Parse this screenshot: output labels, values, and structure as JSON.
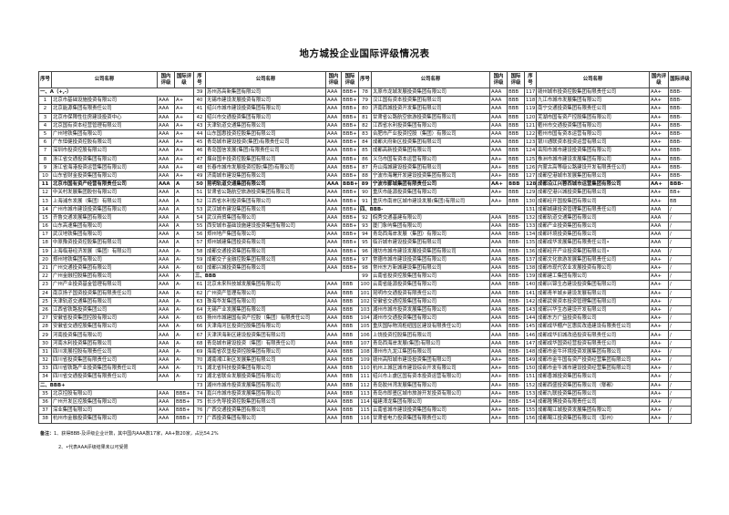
{
  "title": "地方城投企业国际评级情况表",
  "headers": {
    "seq": "序号",
    "name": "公司名称",
    "domestic": "国内评级",
    "intl": "国际评级"
  },
  "groups": [
    [
      {
        "section": "一、A（+,-）"
      },
      [
        "1",
        "北京市基础设施投资有限公司",
        "AAA",
        "A+"
      ],
      [
        "2",
        "北京能源集团有限责任公司",
        "AAA",
        "A+"
      ],
      [
        "3",
        "北京市保障性住房建设投资中心",
        "AAA",
        "A+"
      ],
      [
        "4",
        "北京国有资本经营管理有限公司",
        "AAA",
        "A+"
      ],
      [
        "5",
        "广州地铁集团有限公司",
        "AAA",
        "A+"
      ],
      [
        "6",
        "广东恒健投资控股有限公司",
        "AAA",
        "A+"
      ],
      [
        "7",
        "深圳市投资控股有限公司",
        "AAA",
        "A+"
      ],
      [
        "8",
        "浙江省交通投资集团有限公司",
        "AAA",
        "A+"
      ],
      [
        "9",
        "浙江省海港投资运营集团有限公司",
        "AAA",
        "A+"
      ],
      [
        "10",
        "山东省财金投资集团有限公司",
        "AAA",
        "A+"
      ],
      [
        "11",
        "北京市国有资产经营有限责任公司",
        "AAA",
        "A"
      ],
      [
        "12",
        "中关村发展集团股份有限公司",
        "AAA",
        "A"
      ],
      [
        "13",
        "上海浦东发展（集团）有限公司",
        "AAA",
        "A"
      ],
      [
        "14",
        "广州市城市建设投资集团有限公司",
        "AAA",
        "A"
      ],
      [
        "15",
        "齐鲁交通发展集团有限公司",
        "AAA",
        "A"
      ],
      [
        "16",
        "山东高速集团有限公司",
        "AAA",
        "A"
      ],
      [
        "17",
        "武汉地铁集团有限公司",
        "AAA",
        "A"
      ],
      [
        "18",
        "中原豫资投资控股集团有限公司",
        "AAA",
        "A"
      ],
      [
        "19",
        "上海临港经济发展（集团）有限公司",
        "AAA",
        "A-"
      ],
      [
        "20",
        "郑州地铁集团有限公司",
        "AAA",
        "A-"
      ],
      [
        "21",
        "广州交通投资集团有限公司",
        "AAA",
        "A-"
      ],
      [
        "22",
        "广州金融控股集团有限公司",
        "AAA",
        "A-"
      ],
      [
        "23",
        "广州产业投资基金管理有限公司",
        "AAA",
        "A-"
      ],
      [
        "24",
        "南京扬子国资投资集团有限责任公司",
        "AAA",
        "A-"
      ],
      [
        "25",
        "天津轨道交通集团有限公司",
        "AAA",
        "A-"
      ],
      [
        "26",
        "江西省铁路投资集团公司",
        "AAA",
        "A-"
      ],
      [
        "27",
        "安徽省投资集团控股有限公司",
        "AAA",
        "A-"
      ],
      [
        "28",
        "安徽省交通控股集团有限公司",
        "AAA",
        "A-"
      ],
      [
        "29",
        "河南投资集团有限公司",
        "AAA",
        "A-"
      ],
      [
        "30",
        "河南水利投资集团有限公司",
        "AAA",
        "A-"
      ],
      [
        "31",
        "四川发展控股有限责任公司",
        "AAA",
        "A-"
      ],
      [
        "32",
        "四川省投资集团有限责任公司",
        "AAA",
        "A-"
      ],
      [
        "33",
        "四川省铁路产业投资集团有限责任公司",
        "AAA",
        "A-"
      ],
      [
        "34",
        "四川省交通投资集团有限责任公司",
        "AAA",
        "A-"
      ],
      {
        "section": "二、BBB+"
      },
      [
        "35",
        "北京控股有限公司",
        "AAA",
        "BBB+"
      ],
      [
        "36",
        "广州开发区控股集团有限公司",
        "AAA",
        "BBB+"
      ],
      [
        "37",
        "深业集团有限公司",
        "AAA",
        "BBB+"
      ],
      [
        "38",
        "杭州市金融投资集团有限公司",
        "AAA",
        "BBB+"
      ]
    ],
    [
      [
        "39",
        "苏州苏高新集团有限公司",
        "AAA",
        "BBB+"
      ],
      [
        "40",
        "无锡市建设发展投资有限公司",
        "AAA",
        "BBB+"
      ],
      [
        "41",
        "绍兴市城市建设投资集团有限公司",
        "AAA",
        "BBB+"
      ],
      [
        "42",
        "绍兴市交通投资集团有限公司",
        "AAA",
        "BBB+"
      ],
      [
        "43",
        "天津轨道交通集团有限公司",
        "AAA",
        "BBB+"
      ],
      [
        "44",
        "山东国惠投资控股集团有限公司",
        "AAA",
        "BBB+"
      ],
      [
        "45",
        "青岛城市建设投资(集团)有限责任公司",
        "AAA",
        "BBB+"
      ],
      [
        "46",
        "青岛国信发展(集团)有限责任公司",
        "AAA",
        "BBB+"
      ],
      [
        "47",
        "烟台国丰投资控股集团有限公司",
        "AAA",
        "BBB+"
      ],
      [
        "48",
        "长春市城市发展投资控股(集团)有限公司",
        "AAA",
        "BBB+"
      ],
      [
        "49",
        "济南城市建设集团有限公司",
        "AAA",
        "BBB+"
      ],
      [
        "50",
        "昆明轨道交通集团有限公司",
        "AAA",
        "BBB+"
      ],
      [
        "51",
        "甘肃省公路航空旅游投资集团有限公司",
        "AAA",
        "BBB+"
      ],
      [
        "52",
        "江西省水利投资集团有限公司",
        "AAA",
        "BBB+"
      ],
      [
        "53",
        "武汉城市建设集团有限公司",
        "AAA",
        "BBB+"
      ],
      [
        "54",
        "武汉商贸集团有限公司",
        "AAA",
        "BBB+"
      ],
      [
        "55",
        "西安城市基础设施建设投资集团有限公司",
        "AAA",
        "BBB+"
      ],
      [
        "56",
        "郑州地产集团有限公司",
        "AAA",
        "BBB+"
      ],
      [
        "57",
        "郑州城建集团投资有限公司",
        "AAA",
        "BBB+"
      ],
      [
        "58",
        "成都交通投资集团有限公司",
        "AAA",
        "BBB+"
      ],
      [
        "59",
        "成都交子金融控股集团有限公司",
        "AAA",
        "BBB+"
      ],
      [
        "60",
        "成都兴城投资集团有限公司",
        "AAA",
        "BBB+"
      ],
      {
        "section": "三、BBB"
      },
      [
        "61",
        "北京未来科技城发展集团有限公司",
        "AAA",
        "BBB"
      ],
      [
        "62",
        "广州资产管理有限公司",
        "AAA",
        "BBB"
      ],
      [
        "63",
        "珠海华发集团有限公司",
        "AAA",
        "BBB"
      ],
      [
        "64",
        "无锡产业发展集团有限公司",
        "AAA",
        "BBB"
      ],
      [
        "65",
        "扬州市城建国有资产控股（集团）有限责任公司",
        "AAA",
        "BBB"
      ],
      [
        "66",
        "天津海河区投资控股集团有限公司",
        "AAA",
        "BBB"
      ],
      [
        "67",
        "天津滨海新区建设投资集团有限公司",
        "AAA",
        "BBB"
      ],
      [
        "68",
        "青岛城市建设投资（集团）有限责任公司",
        "AAA",
        "BBB"
      ],
      [
        "69",
        "海南省农垦投资控股集团有限公司",
        "AAA",
        "BBB"
      ],
      [
        "70",
        "湖南湘江新区发展集团有限公司",
        "AAA",
        "BBB"
      ],
      [
        "71",
        "湖北省科技投资集团有限公司",
        "AAA",
        "BBB"
      ],
      [
        "72",
        "湖北省联合发展投资集团有限公司",
        "AAA",
        "BBB"
      ],
      [
        "73",
        "湖州市城市投资发展集团有限公司",
        "AAA",
        "BBB"
      ],
      [
        "74",
        "嘉兴市城市投资发展集团有限公司",
        "AAA",
        "BBB"
      ],
      [
        "75",
        "长沙先导投资控股集团有限公司",
        "AAA",
        "BBB"
      ],
      [
        "76",
        "广西交通投资集团有限公司",
        "AAA",
        "BBB"
      ],
      [
        "77",
        "广西投资集团有限公司",
        "AAA",
        "BBB"
      ]
    ],
    [
      [
        "78",
        "太原市龙城发展投资集团有限公司",
        "AAA",
        "BBB"
      ],
      [
        "79",
        "汉江国有资本投资集团有限公司",
        "AAA",
        "BBB"
      ],
      [
        "80",
        "济南西城投资开发集团有限公司",
        "AAA",
        "BBB"
      ],
      [
        "81",
        "甘肃省公路航空旅游投资集团有限公司",
        "AAA",
        "BBB"
      ],
      [
        "82",
        "江西省水利投资集团有限公司",
        "AAA",
        "BBB"
      ],
      [
        "83",
        "合肥市产业投资控股（集团）有限公司",
        "AAA",
        "BBB"
      ],
      [
        "84",
        "成都天府新区投资集团有限公司",
        "AAA",
        "BBB"
      ],
      [
        "85",
        "成都高新投资集团有限公司",
        "AAA",
        "BBB"
      ],
      [
        "86",
        "义乌市国有资本运营有限公司",
        "AA+",
        "BBB"
      ],
      [
        "87",
        "舟山海城建设投资集团有限公司",
        "AA+",
        "BBB"
      ],
      [
        "88",
        "宁波市海曙开发建设投资集团有限公司",
        "AA+",
        "BBB"
      ],
      [
        "89",
        "宁波市鄞城集团有限责任公司",
        "AA+",
        "BBB"
      ],
      [
        "90",
        "重庆市能源投资集团有限公司",
        "AA+",
        "BBB"
      ],
      [
        "91",
        "重庆市南岸区城市建设发展(集团)有限公司",
        "AA+",
        "BBB"
      ],
      {
        "section": "四、BBB-"
      },
      [
        "92",
        "皖秀交通基建有限公司",
        "AAA",
        "BBB-"
      ],
      [
        "93",
        "厦门象屿集团有限公司",
        "AAA",
        "BBB-"
      ],
      [
        "94",
        "青岛西海岸发展（集团）有限公司",
        "AAA",
        "BBB-"
      ],
      [
        "95",
        "临沂城市建设投资集团有限公司",
        "AAA",
        "BBB-"
      ],
      [
        "96",
        "潍坊市城市建设发展投资集团有限公司",
        "AAA",
        "BBB-"
      ],
      [
        "97",
        "常德市城市建设投资集团有限公司",
        "AAA",
        "BBB-"
      ],
      [
        "98",
        "常州东方新城建设集团有限公司",
        "AAA",
        "BBB-"
      ],
      [
        "99",
        "云南省投资控股集团有限公司",
        "AAA",
        "BBB-"
      ],
      [
        "100",
        "云南省能源投资集团有限公司",
        "AAA",
        "BBB-"
      ],
      [
        "101",
        "昆明市交通投资有限责任公司",
        "AAA",
        "BBB-"
      ],
      [
        "102",
        "安徽省交通控股集团有限公司",
        "AAA",
        "BBB-"
      ],
      [
        "103",
        "湖州市城市投资发展集团有限公司",
        "AAA",
        "BBB-"
      ],
      [
        "104",
        "湖州市交通投资集团有限公司",
        "AAA",
        "BBB-"
      ],
      [
        "105",
        "重庆国际物流枢纽园区建设有限责任公司",
        "AAA",
        "BBB-"
      ],
      [
        "106",
        "上饶投资控股集团有限公司",
        "AAA",
        "BBB-"
      ],
      [
        "107",
        "青岛西海岸发展(集团)有限公司",
        "AAA",
        "BBB-"
      ],
      [
        "108",
        "漳州市九龙江集团有限公司",
        "AAA",
        "BBB-"
      ],
      [
        "109",
        "赣州高阳城市建设投资集团有限公司",
        "AA+",
        "BBB-"
      ],
      [
        "110",
        "杭州上城区城市建设综合开发有限公司",
        "AA+",
        "BBB-"
      ],
      [
        "111",
        "绍兴市上虞区国有资本投资运营有限公司",
        "AA+",
        "BBB-"
      ],
      [
        "112",
        "青岛胶州湾发展集团有限公司",
        "AA+",
        "BBB-"
      ],
      [
        "113",
        "青岛市即墨区城市旅游开发投资有限公司",
        "AA+",
        "BBB-"
      ],
      [
        "114",
        "福建漳龙集团有限公司",
        "AA+",
        "BBB-"
      ],
      [
        "115",
        "云南省城市建设投资集团有限公司",
        "AA+",
        "BBB-"
      ],
      [
        "116",
        "甘肃省电力投资集团有限责任公司",
        "AA+",
        "BBB-"
      ]
    ],
    [
      [
        "117",
        "赣州城市投资控股集团有限责任公司",
        "AA+",
        "BBB-"
      ],
      [
        "118",
        "九江市城市发展集团有限公司",
        "AA+",
        "BBB-"
      ],
      [
        "119",
        "南宁交通投资集团有限责任公司",
        "AA+",
        "BBB-"
      ],
      [
        "120",
        "芜湖市国有资产控股集团有限公司",
        "AA+",
        "BBB-"
      ],
      [
        "121",
        "衢州市交通投资集团有限公司",
        "AA+",
        "BBB-"
      ],
      [
        "122",
        "衢州市国有资本运营有限公司",
        "AA+",
        "BBB-"
      ],
      [
        "123",
        "银川通联资本投资运营有限公司",
        "AA+",
        "BBB-"
      ],
      [
        "124",
        "岳阳市城市建设投资集团有限公司",
        "AA+",
        "BBB-"
      ],
      [
        "125",
        "株洲市城市建设发展集团有限公司",
        "AA+",
        "BBB-"
      ],
      [
        "126",
        "内蒙古高等级公路建设开发有限责任公司",
        "AA+",
        "BBB-"
      ],
      [
        "127",
        "成都空港城市发展集团有限公司",
        "AA+",
        "BBB-"
      ],
      [
        "128",
        "成都沿江兴蓉西城市运营集团有限公司",
        "AA+",
        "BBB-"
      ],
      [
        "129",
        "成都空港兴城投资集团有限公司",
        "AA+",
        "BB+"
      ],
      [
        "130",
        "成都经开国投集团有限公司",
        "AA+",
        "BB"
      ],
      [
        "131",
        "成都城建投资管理集团有限责任公司",
        "AAA",
        "/"
      ],
      [
        "132",
        "成都轨道交通集团有限公司",
        "AAA",
        "/"
      ],
      [
        "133",
        "成都产业投资集团有限公司",
        "AAA",
        "/"
      ],
      [
        "134",
        "成都环境投资集团有限公司",
        "AAA",
        "/"
      ],
      [
        "135",
        "成都成华发展集团有限责任公司•",
        "AAA",
        "/"
      ],
      [
        "136",
        "成都经开产业投资集团有限公司•",
        "AAA",
        "/"
      ],
      [
        "137",
        "成都文化旅游发展集团有限责任公司",
        "AA+",
        "/"
      ],
      [
        "138",
        "成都市现代农业发展投资有限公司",
        "AA+",
        "/"
      ],
      [
        "139",
        "成都建工集团有限公司",
        "AA+",
        "/"
      ],
      [
        "140",
        "成都兴锦生态建设投资集团有限公司",
        "AA+",
        "/"
      ],
      [
        "141",
        "成都青羊城乡建设发展有限公司",
        "AA+",
        "/"
      ],
      [
        "142",
        "成都武侯资本投资管理集团有限公司",
        "AA+",
        "/"
      ],
      [
        "143",
        "成都兴华生态建设开发有限公司",
        "AA+",
        "/"
      ],
      [
        "144",
        "成都东方广益投资有限公司",
        "AA+",
        "/"
      ],
      [
        "145",
        "成都成华棚户区惠民改造建设有限责任公司",
        "AA+",
        "/"
      ],
      [
        "146",
        "成都成华旧城改造投资有限责任公司",
        "AA+",
        "/"
      ],
      [
        "147",
        "成都成华国资经营投资有限责任公司",
        "AA+",
        "/"
      ],
      [
        "148",
        "成都市金牛环境投资发展集团有限公司",
        "AA+",
        "/"
      ],
      [
        "149",
        "成都市金牛国有资产投资经营集团有限公司",
        "AA+",
        "/"
      ],
      [
        "150",
        "成都市金牛城市建设投资经营集团有限公司",
        "AA+",
        "/"
      ],
      [
        "151",
        "成都香城投资集团有限公司",
        "AA+",
        "/"
      ],
      [
        "152",
        "成都西盛投资集团有限公司（郫都）",
        "AA+",
        "/"
      ],
      [
        "153",
        "成都九联投资集团有限公司",
        "AA+",
        "/"
      ],
      [
        "154",
        "成都隆博投资有限责任公司",
        "AA+",
        "/"
      ],
      [
        "155",
        "成都蜀江城投资发展集团有限公司",
        "AA+",
        "/"
      ],
      [
        "156",
        "成都蜀江投资集团有限公司（彭州）",
        "AA+",
        "/"
      ]
    ]
  ],
  "bold_row": "128",
  "notes": {
    "label": "备注：",
    "line1": "1、获得BBB-及评级企业计数，其中国内AAA数17家，AA+数20家，占比54.2%",
    "line2": "2、•代表AAA评级结果未以可受限"
  }
}
